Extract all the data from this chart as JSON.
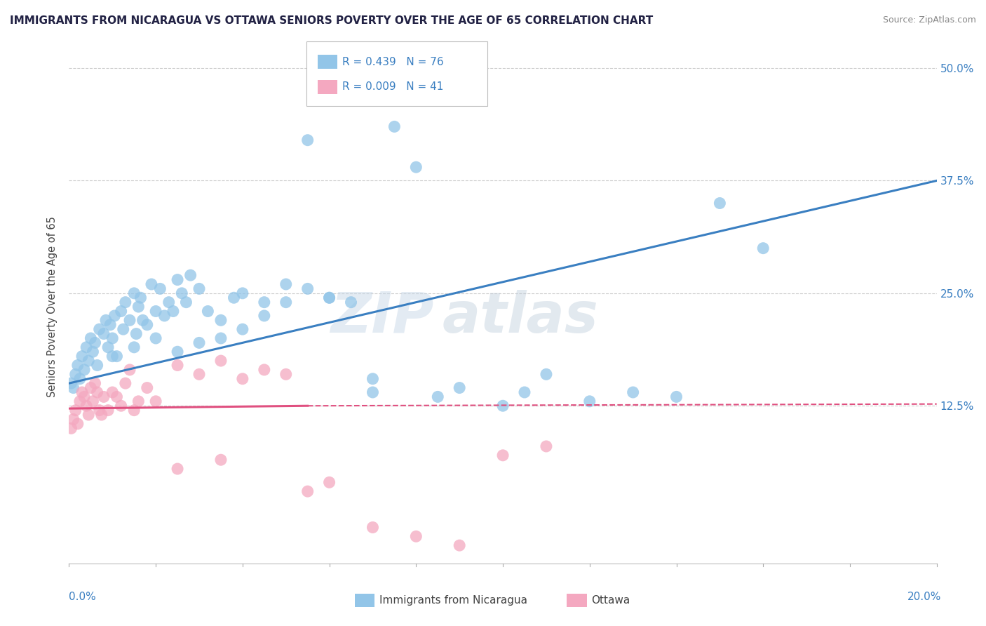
{
  "title": "IMMIGRANTS FROM NICARAGUA VS OTTAWA SENIORS POVERTY OVER THE AGE OF 65 CORRELATION CHART",
  "source": "Source: ZipAtlas.com",
  "ylabel": "Seniors Poverty Over the Age of 65",
  "xlim": [
    0.0,
    20.0
  ],
  "ylim": [
    -5.0,
    52.0
  ],
  "blue_color": "#92c5e8",
  "pink_color": "#f4a8c0",
  "blue_line_color": "#3a7fc1",
  "pink_line_color": "#e05080",
  "watermark": "ZIPatlas",
  "legend_blue_R": "R = 0.439",
  "legend_blue_N": "N = 76",
  "legend_pink_R": "R = 0.009",
  "legend_pink_N": "N = 41",
  "legend_label_blue": "Immigrants from Nicaragua",
  "legend_label_pink": "Ottawa",
  "y_tick_positions": [
    12.5,
    25.0,
    37.5,
    50.0
  ],
  "x_tick_positions": [
    0.0,
    2.0,
    4.0,
    6.0,
    8.0,
    10.0,
    12.0,
    14.0,
    16.0,
    18.0,
    20.0
  ],
  "blue_x": [
    0.05,
    0.1,
    0.15,
    0.2,
    0.25,
    0.3,
    0.35,
    0.4,
    0.45,
    0.5,
    0.55,
    0.6,
    0.65,
    0.7,
    0.8,
    0.85,
    0.9,
    0.95,
    1.0,
    1.05,
    1.1,
    1.2,
    1.25,
    1.3,
    1.4,
    1.5,
    1.55,
    1.6,
    1.65,
    1.7,
    1.8,
    1.9,
    2.0,
    2.1,
    2.2,
    2.3,
    2.4,
    2.5,
    2.6,
    2.7,
    2.8,
    3.0,
    3.2,
    3.5,
    3.8,
    4.0,
    4.5,
    5.0,
    5.5,
    6.0,
    6.5,
    7.0,
    7.0,
    8.5,
    9.0,
    10.0,
    10.5,
    11.0,
    12.0,
    13.0,
    14.0,
    15.0,
    16.0,
    5.5,
    8.0,
    7.5,
    6.0,
    5.0,
    4.5,
    4.0,
    3.5,
    3.0,
    2.5,
    2.0,
    1.5,
    1.0
  ],
  "blue_y": [
    15.0,
    14.5,
    16.0,
    17.0,
    15.5,
    18.0,
    16.5,
    19.0,
    17.5,
    20.0,
    18.5,
    19.5,
    17.0,
    21.0,
    20.5,
    22.0,
    19.0,
    21.5,
    20.0,
    22.5,
    18.0,
    23.0,
    21.0,
    24.0,
    22.0,
    25.0,
    20.5,
    23.5,
    24.5,
    22.0,
    21.5,
    26.0,
    23.0,
    25.5,
    22.5,
    24.0,
    23.0,
    26.5,
    25.0,
    24.0,
    27.0,
    25.5,
    23.0,
    22.0,
    24.5,
    25.0,
    24.0,
    26.0,
    25.5,
    24.5,
    24.0,
    14.0,
    15.5,
    13.5,
    14.5,
    12.5,
    14.0,
    16.0,
    13.0,
    14.0,
    13.5,
    35.0,
    30.0,
    42.0,
    39.0,
    43.5,
    24.5,
    24.0,
    22.5,
    21.0,
    20.0,
    19.5,
    18.5,
    20.0,
    19.0,
    18.0
  ],
  "pink_x": [
    0.05,
    0.1,
    0.15,
    0.2,
    0.25,
    0.3,
    0.35,
    0.4,
    0.45,
    0.5,
    0.55,
    0.6,
    0.65,
    0.7,
    0.75,
    0.8,
    0.9,
    1.0,
    1.1,
    1.2,
    1.3,
    1.4,
    1.5,
    1.6,
    1.8,
    2.0,
    2.5,
    3.0,
    3.5,
    4.0,
    4.5,
    5.0,
    5.5,
    6.0,
    7.0,
    8.0,
    9.0,
    10.0,
    11.0,
    2.5,
    3.5
  ],
  "pink_y": [
    10.0,
    11.0,
    12.0,
    10.5,
    13.0,
    14.0,
    13.5,
    12.5,
    11.5,
    14.5,
    13.0,
    15.0,
    14.0,
    12.0,
    11.5,
    13.5,
    12.0,
    14.0,
    13.5,
    12.5,
    15.0,
    16.5,
    12.0,
    13.0,
    14.5,
    13.0,
    17.0,
    16.0,
    17.5,
    15.5,
    16.5,
    16.0,
    3.0,
    4.0,
    -1.0,
    -2.0,
    -3.0,
    7.0,
    8.0,
    5.5,
    6.5
  ],
  "blue_line_x0": 0.0,
  "blue_line_y0": 15.0,
  "blue_line_x1": 20.0,
  "blue_line_y1": 37.5,
  "pink_line_x0": 0.0,
  "pink_line_y0": 12.2,
  "pink_line_x1": 5.5,
  "pink_line_y1": 12.5,
  "pink_dash_x0": 5.5,
  "pink_dash_y0": 12.5,
  "pink_dash_x1": 20.0,
  "pink_dash_y1": 12.7
}
